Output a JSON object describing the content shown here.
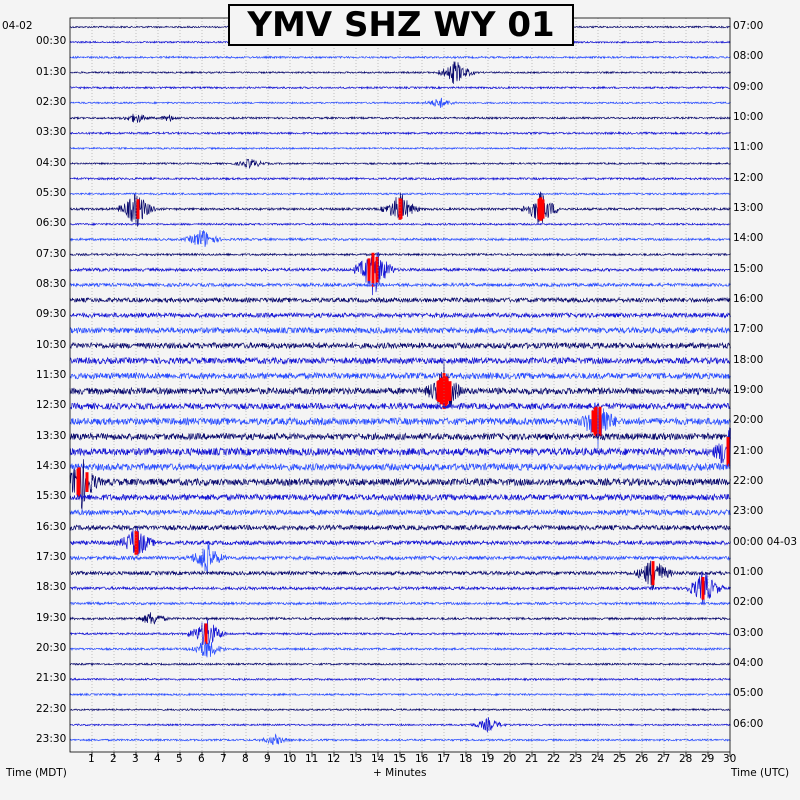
{
  "title": "YMV SHZ WY 01",
  "corner_date_left": "04-02",
  "x_axis_label": "+ Minutes",
  "left_axis_label": "Time (MDT)",
  "right_axis_label": "Time (UTC)",
  "chart_data": {
    "type": "helicorder",
    "station": "YMV",
    "channel": "SHZ",
    "network": "WY",
    "location": "01",
    "rows": 48,
    "minutes_per_row": 30,
    "x_ticks": [
      1,
      2,
      3,
      4,
      5,
      6,
      7,
      8,
      9,
      10,
      11,
      12,
      13,
      14,
      15,
      16,
      17,
      18,
      19,
      20,
      21,
      22,
      23,
      24,
      25,
      26,
      27,
      28,
      29,
      30
    ],
    "left_labels": [
      "00:30",
      "01:30",
      "02:30",
      "03:30",
      "04:30",
      "05:30",
      "06:30",
      "07:30",
      "08:30",
      "09:30",
      "10:30",
      "11:30",
      "12:30",
      "13:30",
      "14:30",
      "15:30",
      "16:30",
      "17:30",
      "18:30",
      "19:30",
      "20:30",
      "21:30",
      "22:30",
      "23:30"
    ],
    "right_labels": [
      "07:00",
      "08:00",
      "09:00",
      "10:00",
      "11:00",
      "12:00",
      "13:00",
      "14:00",
      "15:00",
      "16:00",
      "17:00",
      "18:00",
      "19:00",
      "20:00",
      "21:00",
      "22:00",
      "23:00",
      "00:00 04-03",
      "01:00",
      "02:00",
      "03:00",
      "04:00",
      "05:00",
      "06:00"
    ],
    "trace_colors": [
      "#0a0a6e",
      "#1515d4",
      "#2a4dff"
    ],
    "clip_color": "#ff0000",
    "noise_level_by_row": [
      0.8,
      0.8,
      0.9,
      0.8,
      0.9,
      0.8,
      0.9,
      1.0,
      0.8,
      0.8,
      1.0,
      0.9,
      1.1,
      0.9,
      1.1,
      1.0,
      1.5,
      1.6,
      2.2,
      2.2,
      2.8,
      2.8,
      3.0,
      3.0,
      3.2,
      3.0,
      3.4,
      3.2,
      3.6,
      3.4,
      3.4,
      3.0,
      2.6,
      2.4,
      2.0,
      1.8,
      1.8,
      1.4,
      1.2,
      1.1,
      1.0,
      1.0,
      0.9,
      0.9,
      0.9,
      0.8,
      0.8,
      0.9
    ],
    "events": [
      {
        "row": 3,
        "minute": 17.5,
        "amplitude": 14
      },
      {
        "row": 5,
        "minute": 16.8,
        "amplitude": 6
      },
      {
        "row": 6,
        "minute": 3.0,
        "amplitude": 6
      },
      {
        "row": 6,
        "minute": 4.5,
        "amplitude": 4
      },
      {
        "row": 9,
        "minute": 8.2,
        "amplitude": 6
      },
      {
        "row": 12,
        "minute": 3.0,
        "amplitude": 20
      },
      {
        "row": 12,
        "minute": 15.0,
        "amplitude": 18
      },
      {
        "row": 12,
        "minute": 21.4,
        "amplitude": 20
      },
      {
        "row": 14,
        "minute": 6.0,
        "amplitude": 12
      },
      {
        "row": 16,
        "minute": 13.8,
        "amplitude": 30
      },
      {
        "row": 24,
        "minute": 17.0,
        "amplitude": 30
      },
      {
        "row": 26,
        "minute": 24.0,
        "amplitude": 30
      },
      {
        "row": 28,
        "minute": 30.0,
        "amplitude": 30
      },
      {
        "row": 30,
        "minute": 0.5,
        "amplitude": 30
      },
      {
        "row": 34,
        "minute": 3.0,
        "amplitude": 20
      },
      {
        "row": 35,
        "minute": 6.2,
        "amplitude": 18
      },
      {
        "row": 36,
        "minute": 26.5,
        "amplitude": 20
      },
      {
        "row": 37,
        "minute": 28.8,
        "amplitude": 20
      },
      {
        "row": 39,
        "minute": 3.7,
        "amplitude": 8
      },
      {
        "row": 40,
        "minute": 6.2,
        "amplitude": 18
      },
      {
        "row": 41,
        "minute": 6.2,
        "amplitude": 12
      },
      {
        "row": 46,
        "minute": 19.0,
        "amplitude": 8
      },
      {
        "row": 47,
        "minute": 9.3,
        "amplitude": 6
      }
    ]
  }
}
